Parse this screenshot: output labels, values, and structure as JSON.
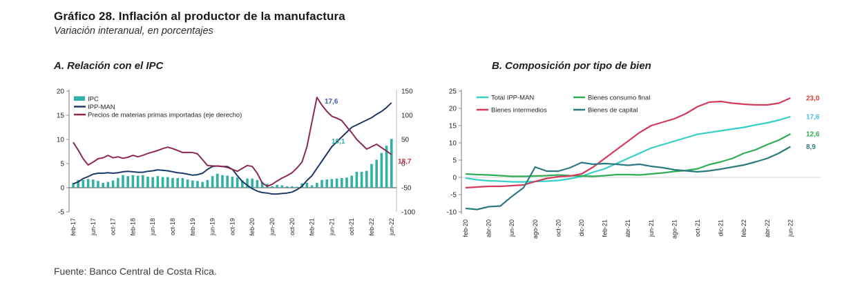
{
  "page": {
    "title": "Gráfico 28. Inflación al productor de la manufactura",
    "subtitle": "Variación interanual, en porcentajes",
    "source": "Fuente: Banco Central de Costa Rica."
  },
  "chart_data": [
    {
      "id": "panel_a",
      "type": "bar+line",
      "title": "A. Relación con el IPC",
      "frequency": "monthly",
      "x_tick_step": 4,
      "x": [
        "feb-17",
        "mar-17",
        "abr-17",
        "may-17",
        "jun-17",
        "jul-17",
        "ago-17",
        "sep-17",
        "oct-17",
        "nov-17",
        "dic-17",
        "ene-18",
        "feb-18",
        "mar-18",
        "abr-18",
        "may-18",
        "jun-18",
        "jul-18",
        "ago-18",
        "sep-18",
        "oct-18",
        "nov-18",
        "dic-18",
        "ene-19",
        "feb-19",
        "mar-19",
        "abr-19",
        "may-19",
        "jun-19",
        "jul-19",
        "ago-19",
        "sep-19",
        "oct-19",
        "nov-19",
        "dic-19",
        "ene-20",
        "feb-20",
        "mar-20",
        "abr-20",
        "may-20",
        "jun-20",
        "jul-20",
        "ago-20",
        "sep-20",
        "oct-20",
        "nov-20",
        "dic-20",
        "ene-21",
        "feb-21",
        "mar-21",
        "abr-21",
        "may-21",
        "jun-21",
        "jul-21",
        "ago-21",
        "sep-21",
        "oct-21",
        "nov-21",
        "dic-21",
        "ene-22",
        "feb-22",
        "mar-22",
        "abr-22",
        "may-22",
        "jun-22"
      ],
      "axes": {
        "left": {
          "ticks": [
            20,
            15,
            10,
            5,
            0,
            -5
          ],
          "min": -5,
          "max": 20
        },
        "right": {
          "ticks": [
            150,
            100,
            50,
            0,
            -50,
            -100
          ],
          "min": -100,
          "max": 150
        }
      },
      "series": [
        {
          "name": "IPC",
          "type": "bar",
          "axis": "left",
          "color": "#2FB0A9",
          "values": [
            1.0,
            1.6,
            1.6,
            1.8,
            1.7,
            1.4,
            1.0,
            1.2,
            1.5,
            2.0,
            2.6,
            2.4,
            2.6,
            2.5,
            2.6,
            2.3,
            2.2,
            2.4,
            2.2,
            2.2,
            2.0,
            2.0,
            2.0,
            1.7,
            1.5,
            1.4,
            1.2,
            1.6,
            2.4,
            2.9,
            2.6,
            2.5,
            2.3,
            2.1,
            1.5,
            1.9,
            1.9,
            1.6,
            1.2,
            0.8,
            0.3,
            0.6,
            0.5,
            0.3,
            0.3,
            0.2,
            0.9,
            1.0,
            0.5,
            1.0,
            1.6,
            1.7,
            1.8,
            1.9,
            2.0,
            2.1,
            2.5,
            3.3,
            3.3,
            3.5,
            4.9,
            5.8,
            7.2,
            8.7,
            10.1
          ]
        },
        {
          "name": "IPP-MAN",
          "type": "line",
          "axis": "left",
          "color": "#1F3864",
          "values": [
            0.8,
            1.2,
            1.9,
            2.3,
            2.8,
            3.0,
            3.0,
            3.1,
            3.0,
            3.1,
            3.3,
            3.4,
            3.3,
            3.2,
            3.2,
            3.4,
            3.5,
            3.7,
            3.6,
            3.5,
            3.3,
            3.1,
            3.0,
            2.8,
            2.6,
            2.7,
            3.0,
            3.8,
            4.4,
            4.5,
            4.4,
            4.4,
            3.8,
            2.5,
            1.3,
            0.5,
            -0.2,
            -0.7,
            -1.0,
            -1.1,
            -1.3,
            -1.3,
            -1.2,
            -1.1,
            -0.9,
            -0.4,
            0.3,
            1.5,
            2.5,
            4.0,
            5.5,
            7.0,
            8.5,
            9.5,
            10.5,
            11.5,
            12.5,
            13.0,
            13.5,
            14.0,
            14.5,
            15.2,
            15.8,
            16.6,
            17.6
          ]
        },
        {
          "name": "Precios de materias primas importadas (eje derecho)",
          "type": "line",
          "axis": "right",
          "color": "#8C2A4E",
          "values": [
            44,
            28,
            10,
            -3,
            3,
            10,
            12,
            17,
            12,
            14,
            11,
            13,
            17,
            14,
            17,
            21,
            24,
            27,
            31,
            34,
            31,
            27,
            23,
            23,
            23,
            20,
            8,
            -4,
            -5,
            -5,
            -6,
            -8,
            -12,
            -16,
            -10,
            -4,
            -6,
            -20,
            -40,
            -47,
            -43,
            -36,
            -30,
            -25,
            -19,
            -9,
            3,
            35,
            86,
            137,
            121,
            108,
            98,
            94,
            89,
            76,
            64,
            50,
            40,
            30,
            35,
            40,
            33,
            26,
            18.7
          ]
        }
      ],
      "end_labels": [
        {
          "text": "17,6",
          "series": "IPP-MAN",
          "color": "#3A5CA8"
        },
        {
          "text": "10,1",
          "series": "IPC",
          "color": "#2FA8A1"
        },
        {
          "text": "18,7",
          "series": "Precios de materias primas importadas",
          "color": "#C0394B"
        }
      ]
    },
    {
      "id": "panel_b",
      "type": "line",
      "title": "B. Composición por tipo de bien",
      "frequency": "monthly",
      "x_tick_step": 2,
      "x": [
        "feb-20",
        "mar-20",
        "abr-20",
        "may-20",
        "jun-20",
        "jul-20",
        "ago-20",
        "sep-20",
        "oct-20",
        "nov-20",
        "dic-20",
        "ene-21",
        "feb-21",
        "mar-21",
        "abr-21",
        "may-21",
        "jun-21",
        "jul-21",
        "ago-21",
        "sep-21",
        "oct-21",
        "nov-21",
        "dic-21",
        "ene-22",
        "feb-22",
        "mar-22",
        "abr-22",
        "may-22",
        "jun-22"
      ],
      "axes": {
        "left": {
          "ticks": [
            25,
            20,
            15,
            10,
            5,
            0,
            -5,
            -10
          ],
          "min": -10,
          "max": 25
        }
      },
      "series": [
        {
          "name": "Total IPP-MAN",
          "type": "line",
          "color": "#35CFC7",
          "values": [
            -0.2,
            -0.7,
            -1.0,
            -1.1,
            -1.3,
            -1.3,
            -1.2,
            -1.1,
            -0.9,
            -0.4,
            0.3,
            1.5,
            2.5,
            4.0,
            5.5,
            7.0,
            8.5,
            9.5,
            10.5,
            11.5,
            12.5,
            13.0,
            13.5,
            14.0,
            14.5,
            15.2,
            15.8,
            16.6,
            17.6
          ]
        },
        {
          "name": "Bienes consumo final",
          "type": "line",
          "color": "#2FAC54",
          "values": [
            1.0,
            0.8,
            0.7,
            0.5,
            0.3,
            0.3,
            0.4,
            0.5,
            0.7,
            0.5,
            0.4,
            0.3,
            0.5,
            0.8,
            0.8,
            0.7,
            1.0,
            1.3,
            1.7,
            2.0,
            2.5,
            3.7,
            4.5,
            5.5,
            7.0,
            8.0,
            9.5,
            10.8,
            12.6
          ]
        },
        {
          "name": "Bienes intermedios",
          "type": "line",
          "color": "#D23B5C",
          "values": [
            -3.0,
            -2.8,
            -2.6,
            -2.6,
            -2.4,
            -2.2,
            -1.2,
            -0.3,
            0.2,
            0.4,
            1.0,
            3.0,
            5.5,
            8.0,
            10.5,
            13.0,
            15.0,
            16.0,
            17.0,
            18.5,
            20.5,
            21.8,
            22.0,
            21.5,
            21.2,
            21.0,
            21.0,
            21.5,
            23.0
          ]
        },
        {
          "name": "Bienes de capital",
          "type": "line",
          "color": "#2B7A7E",
          "values": [
            -9.0,
            -9.3,
            -8.5,
            -8.3,
            -5.5,
            -3.0,
            3.0,
            1.8,
            1.8,
            2.8,
            4.3,
            3.8,
            4.0,
            3.8,
            3.5,
            3.8,
            3.2,
            2.8,
            2.2,
            1.9,
            1.6,
            1.9,
            2.4,
            3.0,
            3.6,
            4.5,
            5.5,
            7.0,
            8.9
          ]
        }
      ],
      "end_labels": [
        {
          "text": "23,0",
          "value": 23.0,
          "series": "Bienes intermedios",
          "color": "#E3392F"
        },
        {
          "text": "17,6",
          "value": 17.6,
          "series": "Total IPP-MAN",
          "color": "#3FC3DD"
        },
        {
          "text": "12,6",
          "value": 12.6,
          "series": "Bienes consumo final",
          "color": "#2FAC54"
        },
        {
          "text": "8,9",
          "value": 8.9,
          "series": "Bienes de capital",
          "color": "#2B7A7E"
        }
      ]
    }
  ]
}
